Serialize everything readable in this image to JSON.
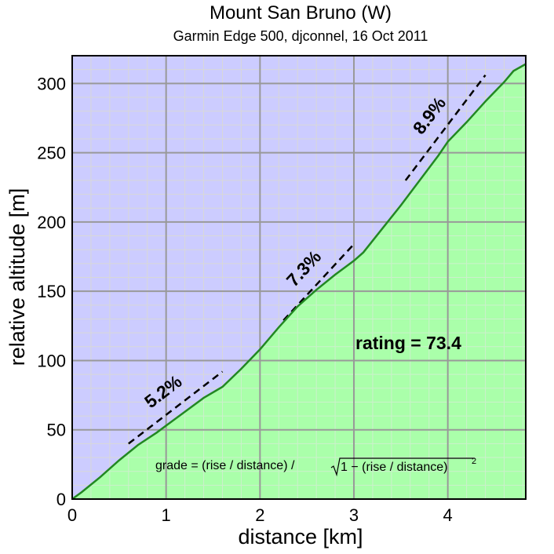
{
  "chart_data": {
    "type": "area",
    "title": "Mount San Bruno (W)",
    "subtitle": "Garmin Edge 500, djconnel, 16 Oct 2011",
    "xlabel": "distance [km]",
    "ylabel": "relative altitude [m]",
    "xlim": [
      0,
      4.83
    ],
    "ylim": [
      0,
      320
    ],
    "x_ticks": [
      0,
      1,
      2,
      3,
      4
    ],
    "y_ticks": [
      0,
      50,
      100,
      150,
      200,
      250,
      300
    ],
    "grid": true,
    "rating_text": "rating = 73.4",
    "formula": {
      "left": "grade = (rise / distance) / ",
      "inner": "1 − (rise / distance)",
      "exponent": "2"
    },
    "series": [
      {
        "x": [
          0,
          0.1,
          0.3,
          0.5,
          0.7,
          0.9,
          1.0,
          1.2,
          1.4,
          1.6,
          1.8,
          2.0,
          2.2,
          2.4,
          2.6,
          2.8,
          3.0,
          3.1,
          3.3,
          3.5,
          3.7,
          3.9,
          4.0,
          4.2,
          4.4,
          4.6,
          4.7,
          4.83
        ],
        "y": [
          0,
          5,
          16,
          28,
          39,
          48,
          53,
          63,
          73,
          81,
          94,
          108,
          124,
          139,
          151,
          162,
          172,
          178,
          195,
          212,
          230,
          248,
          258,
          272,
          287,
          301,
          309,
          314
        ]
      }
    ],
    "grade_segments": [
      {
        "label": "5.2%",
        "x0": 0.6,
        "x1": 1.6,
        "y0": 40,
        "y1": 92
      },
      {
        "label": "7.3%",
        "x0": 2.25,
        "x1": 3.0,
        "y0": 129,
        "y1": 184
      },
      {
        "label": "8.9%",
        "x0": 3.55,
        "x1": 4.4,
        "y0": 230,
        "y1": 306
      }
    ],
    "colors": {
      "sky": "#ccccff",
      "ground": "#aaffaa",
      "profile": "#228822",
      "grid_major": "#999999",
      "grid_minor": "#d8d8d8"
    }
  }
}
